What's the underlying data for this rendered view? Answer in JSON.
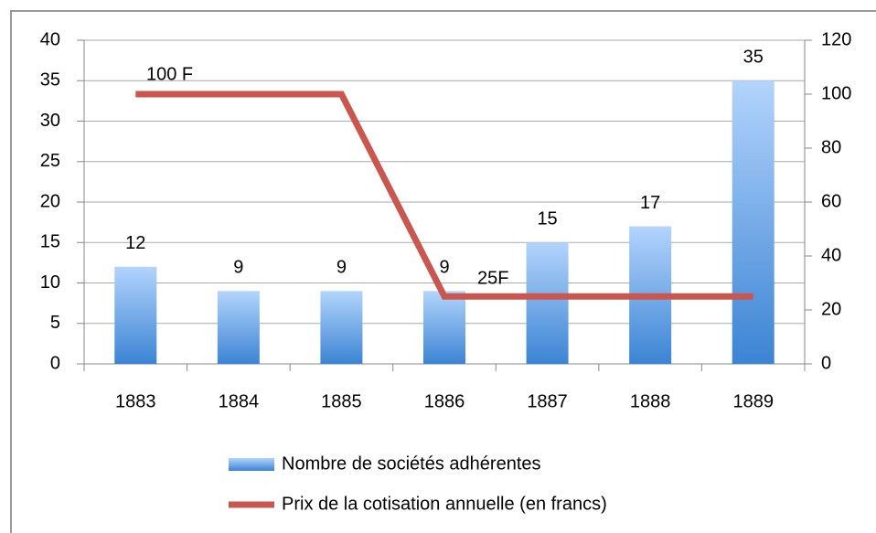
{
  "chart_data": {
    "type": "bar",
    "categories": [
      "1883",
      "1884",
      "1885",
      "1886",
      "1887",
      "1888",
      "1889"
    ],
    "series": [
      {
        "name": "Nombre de sociétés adhérentes",
        "type": "bar",
        "color": "#4a8fdc",
        "values": [
          12,
          9,
          9,
          9,
          15,
          17,
          35
        ]
      },
      {
        "name": "Prix de la cotisation annuelle (en francs)",
        "type": "line",
        "axis": "y2",
        "color": "#c9574f",
        "values": [
          100,
          100,
          100,
          25,
          25,
          25,
          25
        ]
      }
    ],
    "annotations": [
      "100 F",
      "25F"
    ],
    "ylim": [
      0,
      40
    ],
    "yticks": [
      0,
      5,
      10,
      15,
      20,
      25,
      30,
      35,
      40
    ],
    "y2lim": [
      0,
      120
    ],
    "y2ticks": [
      0,
      20,
      40,
      60,
      80,
      100,
      120
    ],
    "grid": true,
    "legend": "bottom"
  }
}
